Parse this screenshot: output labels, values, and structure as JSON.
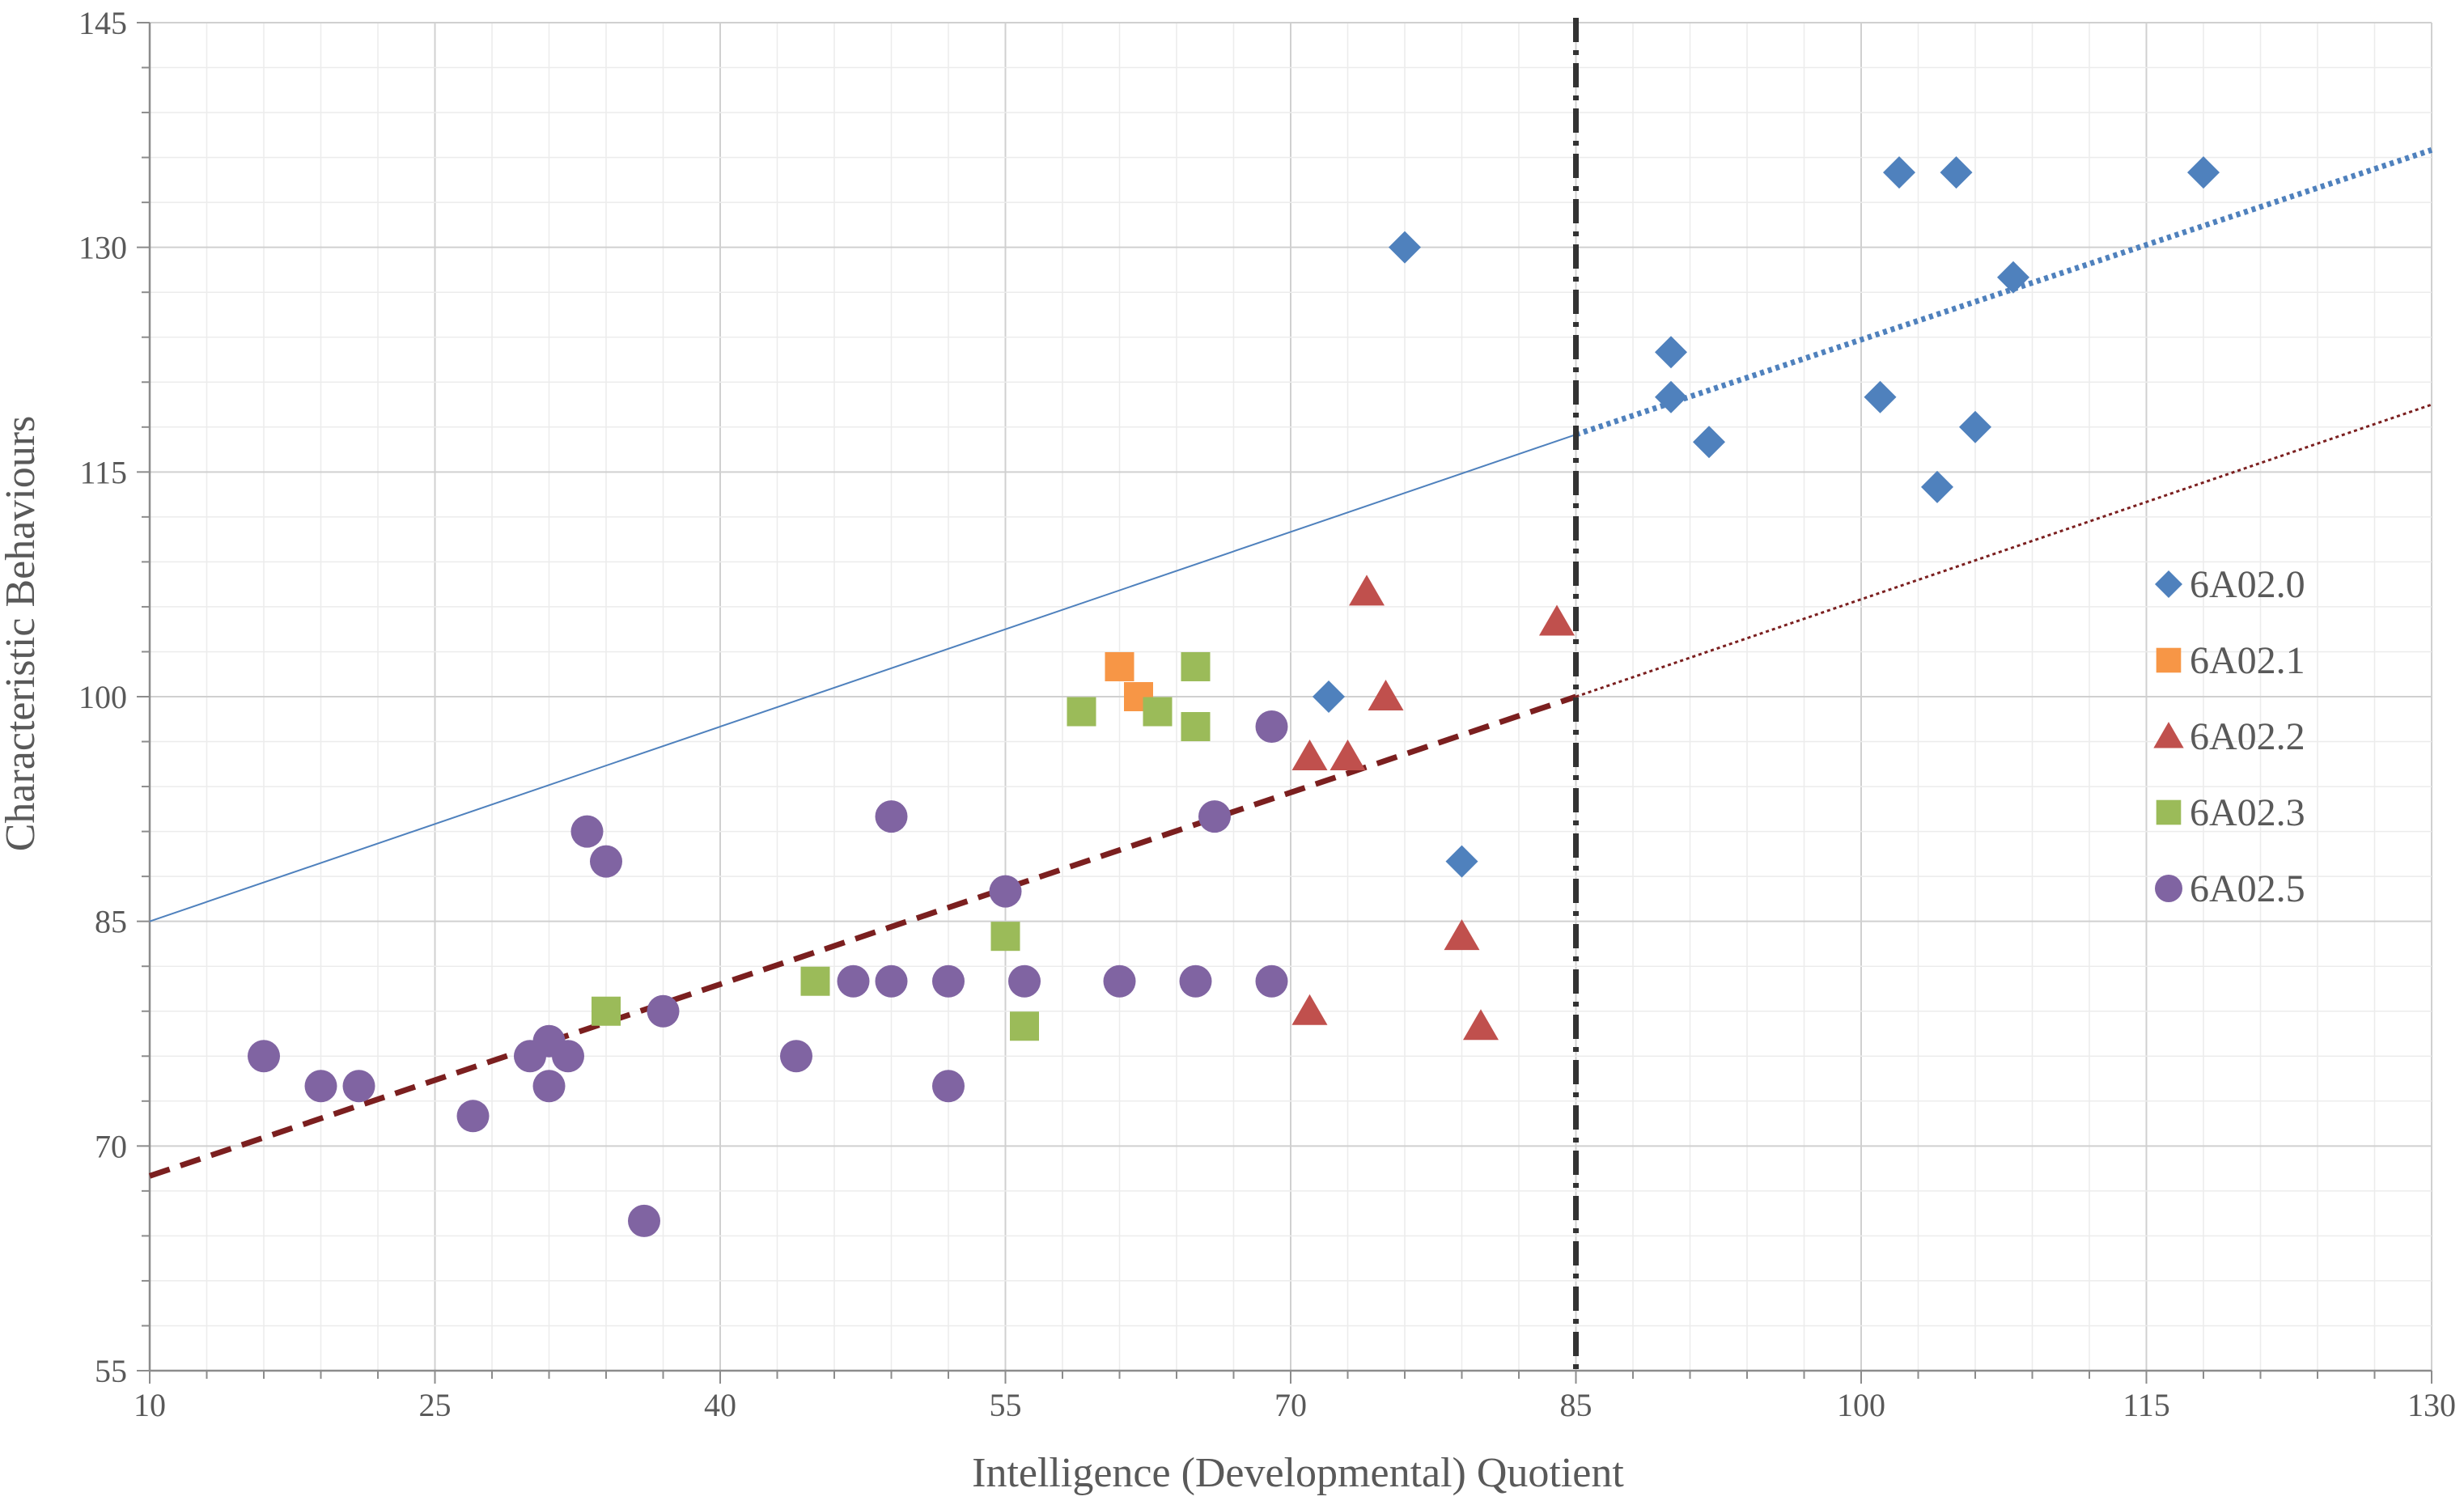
{
  "chart_data": {
    "type": "scatter",
    "title": "",
    "xlabel": "Intelligence (Developmental) Quotient",
    "ylabel": "Characteristic Behaviours",
    "xlim": [
      10,
      130
    ],
    "ylim": [
      55,
      145
    ],
    "x_ticks": [
      "10",
      "25",
      "40",
      "55",
      "70",
      "85",
      "100",
      "115",
      "130"
    ],
    "y_ticks": [
      "145",
      "130",
      "115",
      "100",
      "85",
      "70",
      "55"
    ],
    "grid": true,
    "legend_position": "right",
    "colors": {
      "6A02.0": "#4f81bd",
      "6A02.1": "#f79646",
      "6A02.2": "#c0504d",
      "6A02.3": "#9bbb59",
      "6A02.5": "#8064a2",
      "cutoff": "#333333",
      "upper_line": "#4f81bd",
      "lower_line": "#7b1f1f"
    },
    "series": [
      {
        "name": "6A02.0",
        "marker": "diamond",
        "points": [
          [
            76,
            130
          ],
          [
            72,
            100
          ],
          [
            79,
            89
          ],
          [
            90,
            123
          ],
          [
            90,
            120
          ],
          [
            92,
            117
          ],
          [
            101,
            120
          ],
          [
            102,
            135
          ],
          [
            105,
            135
          ],
          [
            104,
            114
          ],
          [
            106,
            118
          ],
          [
            108,
            128
          ],
          [
            118,
            135
          ]
        ]
      },
      {
        "name": "6A02.1",
        "marker": "square",
        "points": [
          [
            61,
            102
          ],
          [
            62,
            100
          ]
        ]
      },
      {
        "name": "6A02.2",
        "marker": "triangle",
        "points": [
          [
            74,
            107
          ],
          [
            75,
            100
          ],
          [
            71,
            96
          ],
          [
            73,
            96
          ],
          [
            79,
            84
          ],
          [
            71,
            79
          ],
          [
            80,
            78
          ],
          [
            84,
            105
          ]
        ]
      },
      {
        "name": "6A02.3",
        "marker": "square",
        "points": [
          [
            59,
            99
          ],
          [
            63,
            99
          ],
          [
            65,
            102
          ],
          [
            65,
            98
          ],
          [
            55,
            84
          ],
          [
            56,
            78
          ],
          [
            45,
            81
          ],
          [
            34,
            79
          ]
        ]
      },
      {
        "name": "6A02.5",
        "marker": "circle",
        "points": [
          [
            16,
            76
          ],
          [
            19,
            74
          ],
          [
            21,
            74
          ],
          [
            27,
            72
          ],
          [
            30,
            76
          ],
          [
            31,
            77
          ],
          [
            31,
            74
          ],
          [
            32,
            76
          ],
          [
            33,
            91
          ],
          [
            34,
            89
          ],
          [
            36,
            65
          ],
          [
            37,
            79
          ],
          [
            44,
            76
          ],
          [
            47,
            81
          ],
          [
            49,
            81
          ],
          [
            49,
            92
          ],
          [
            52,
            81
          ],
          [
            52,
            74
          ],
          [
            55,
            87
          ],
          [
            56,
            81
          ],
          [
            61,
            81
          ],
          [
            65,
            81
          ],
          [
            66,
            92
          ],
          [
            69,
            81
          ],
          [
            69,
            98
          ]
        ]
      }
    ],
    "lines": [
      {
        "name": "upper-line-solid",
        "style": "thin-solid",
        "color": "upper_line",
        "from": [
          10,
          85
        ],
        "to": [
          85,
          117.5
        ]
      },
      {
        "name": "upper-line-dotted",
        "style": "dotted",
        "color": "upper_line",
        "from": [
          85,
          117.5
        ],
        "to": [
          130,
          136.5
        ]
      },
      {
        "name": "lower-line-dashed",
        "style": "dashed",
        "color": "lower_line",
        "from": [
          10,
          68
        ],
        "to": [
          85,
          100
        ]
      },
      {
        "name": "lower-line-fine-dotted",
        "style": "fine-dotted",
        "color": "lower_line",
        "from": [
          85,
          100
        ],
        "to": [
          130,
          119.5
        ]
      }
    ],
    "cutoff_x": 85
  }
}
